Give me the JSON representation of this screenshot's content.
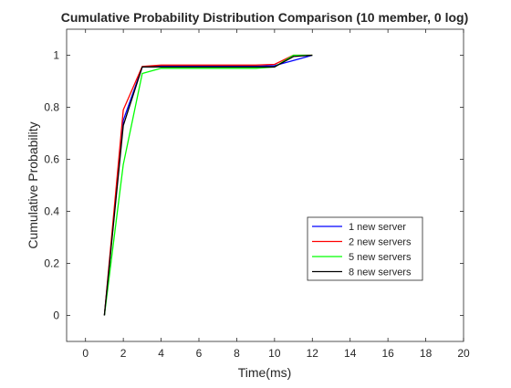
{
  "chart_data": {
    "type": "line",
    "title": "Cumulative Probability Distribution Comparison (10 member, 0 log)",
    "xlabel": "Time(ms)",
    "ylabel": "Cumulative Probability",
    "xlim": [
      -1,
      20
    ],
    "ylim": [
      -0.1,
      1.1
    ],
    "xticks": [
      0,
      2,
      4,
      6,
      8,
      10,
      12,
      14,
      16,
      18,
      20
    ],
    "xtick_labels": [
      "0",
      "2",
      "4",
      "6",
      "8",
      "10",
      "12",
      "14",
      "16",
      "18",
      "20"
    ],
    "yticks": [
      0,
      0.2,
      0.4,
      0.6,
      0.8,
      1
    ],
    "ytick_labels": [
      "0",
      "0.2",
      "0.4",
      "0.6",
      "0.8",
      "1"
    ],
    "grid": false,
    "legend_position": "right-center",
    "series": [
      {
        "name": "1 new server",
        "color": "#0000ff",
        "x": [
          1,
          2,
          3,
          4,
          5,
          6,
          7,
          8,
          9,
          10,
          11,
          12
        ],
        "y": [
          0,
          0.75,
          0.955,
          0.958,
          0.958,
          0.958,
          0.958,
          0.958,
          0.958,
          0.96,
          0.98,
          1
        ]
      },
      {
        "name": "2 new servers",
        "color": "#ff0000",
        "x": [
          1,
          2,
          3,
          4,
          5,
          6,
          7,
          8,
          9,
          10,
          11,
          12
        ],
        "y": [
          0,
          0.79,
          0.957,
          0.962,
          0.962,
          0.962,
          0.962,
          0.962,
          0.962,
          0.965,
          1,
          1
        ]
      },
      {
        "name": "5 new servers",
        "color": "#00ff00",
        "x": [
          1,
          2,
          3,
          4,
          5,
          6,
          7,
          8,
          9,
          10,
          11,
          12
        ],
        "y": [
          0,
          0.58,
          0.93,
          0.95,
          0.95,
          0.95,
          0.95,
          0.95,
          0.95,
          0.955,
          1,
          1
        ]
      },
      {
        "name": "8 new servers",
        "color": "#000000",
        "x": [
          1,
          2,
          3,
          4,
          5,
          6,
          7,
          8,
          9,
          10,
          11,
          12
        ],
        "y": [
          0,
          0.73,
          0.955,
          0.955,
          0.955,
          0.955,
          0.955,
          0.955,
          0.955,
          0.955,
          0.995,
          1
        ]
      }
    ]
  }
}
